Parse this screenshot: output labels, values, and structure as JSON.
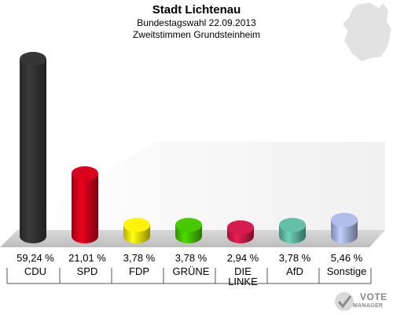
{
  "header": {
    "title": "Stadt Lichtenau",
    "subtitle": "Bundestagswahl 22.09.2013",
    "subtitle2": "Zweitstimmen Grundsteinheim"
  },
  "logo": {
    "line1": "VOTE",
    "line2": "MANAGER"
  },
  "chart_data": {
    "type": "bar",
    "title": "Stadt Lichtenau",
    "subtitle": "Bundestagswahl 22.09.2013 / Zweitstimmen Grundsteinheim",
    "categories": [
      "CDU",
      "SPD",
      "FDP",
      "GRÜNE",
      "DIE LINKE",
      "AfD",
      "Sonstige"
    ],
    "values": [
      59.24,
      21.01,
      3.78,
      3.78,
      2.94,
      3.78,
      5.46
    ],
    "labels": [
      "59,24 %",
      "21,01 %",
      "3,78 %",
      "3,78 %",
      "2,94 %",
      "3,78 %",
      "5,46 %"
    ],
    "colors": [
      "#333333",
      "#d0021b",
      "#f5e60a",
      "#44c000",
      "#cc1a4a",
      "#5fb8a0",
      "#a8b4e0"
    ],
    "ylim": [
      0,
      60
    ],
    "grid": false,
    "legend": "none"
  }
}
